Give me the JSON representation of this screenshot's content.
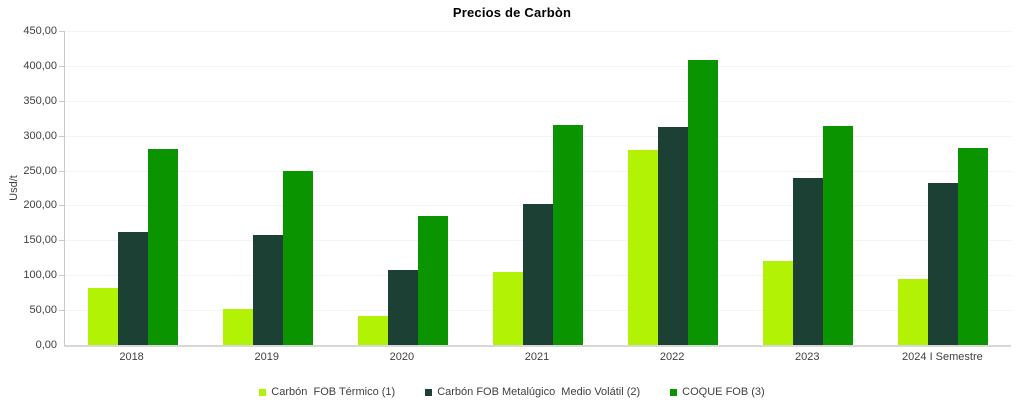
{
  "chart_data": {
    "type": "bar",
    "title": "Precios de Carbòn",
    "xlabel": "",
    "ylabel": "Usd/t",
    "ylim": [
      0,
      450
    ],
    "grid": true,
    "legend_position": "bottom-center",
    "categories": [
      "2018",
      "2019",
      "2020",
      "2021",
      "2022",
      "2023",
      "2024 I Semestre"
    ],
    "series": [
      {
        "name": "Carbón  FOB Térmico (1)",
        "color": "#b2f205",
        "values": [
          81,
          51,
          41,
          105,
          279,
          120,
          95
        ]
      },
      {
        "name": "Carbón FOB Metalúgico  Medio Volátil (2)",
        "color": "#1c4034",
        "values": [
          162,
          158,
          108,
          202,
          312,
          239,
          232
        ]
      },
      {
        "name": "COQUE FOB (3)",
        "color": "#0a9400",
        "values": [
          281,
          249,
          185,
          315,
          408,
          314,
          282
        ]
      }
    ],
    "ytick_values": [
      0,
      50,
      100,
      150,
      200,
      250,
      300,
      350,
      400,
      450
    ],
    "ytick_labels": [
      "0,00",
      "50,00",
      "100,00",
      "150,00",
      "200,00",
      "250,00",
      "300,00",
      "350,00",
      "400,00",
      "450,00"
    ]
  },
  "colors": {
    "background": "#ffffff",
    "axis_line": "#c9c9c9",
    "baseline": "#d8d8d8",
    "gridline": "#f3f3f3",
    "tick_text": "#3f3f3f",
    "title_text": "#000000"
  }
}
